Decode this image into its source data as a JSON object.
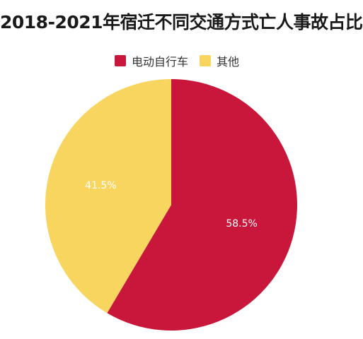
{
  "chart_data": {
    "type": "pie",
    "title": "2018-2021年宿迁不同交通方式亡人事故占比",
    "legend_position": "top-center",
    "slices": [
      {
        "name": "电动自行车",
        "value": 58.5,
        "label": "58.5%",
        "color": "#C8173A"
      },
      {
        "name": "其他",
        "value": 41.5,
        "label": "41.5%",
        "color": "#F8D55E"
      }
    ]
  }
}
